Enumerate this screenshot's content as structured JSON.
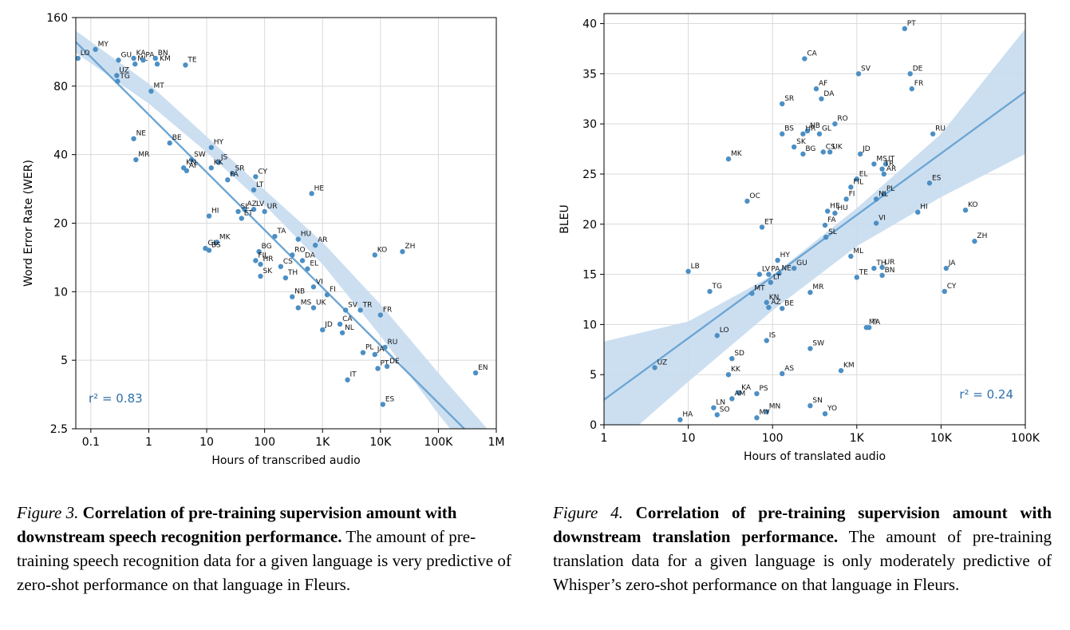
{
  "colors": {
    "point": "#4c8fc4",
    "line": "#6ea6d3",
    "band": "#c6dcef",
    "r2_text": "#2f6fa8",
    "grid": "#d9d9d9"
  },
  "chart_data": [
    {
      "type": "scatter",
      "xlabel": "Hours of transcribed audio",
      "ylabel": "Word Error Rate (WER)",
      "x_scale": "log",
      "y_scale": "log",
      "xlim": [
        0.055,
        1000000
      ],
      "ylim": [
        2.5,
        160
      ],
      "x_ticks": [
        {
          "v": 0.1,
          "label": "0.1"
        },
        {
          "v": 1,
          "label": "1"
        },
        {
          "v": 10,
          "label": "10"
        },
        {
          "v": 100,
          "label": "100"
        },
        {
          "v": 1000,
          "label": "1K"
        },
        {
          "v": 10000,
          "label": "10K"
        },
        {
          "v": 100000,
          "label": "100K"
        },
        {
          "v": 1000000,
          "label": "1M"
        }
      ],
      "y_ticks": [
        {
          "v": 2.5,
          "label": "2.5"
        },
        {
          "v": 5,
          "label": "5"
        },
        {
          "v": 10,
          "label": "10"
        },
        {
          "v": 20,
          "label": "20"
        },
        {
          "v": 40,
          "label": "40"
        },
        {
          "v": 80,
          "label": "80"
        },
        {
          "v": 160,
          "label": "160"
        }
      ],
      "annotation": "r² = 0.83",
      "grid": true,
      "fit": {
        "x1": 0.055,
        "y1": 125,
        "x2": 280000,
        "y2": 2.5
      },
      "band": {
        "upper": [
          [
            0.055,
            140
          ],
          [
            1,
            82
          ],
          [
            10,
            48
          ],
          [
            100,
            28
          ],
          [
            1000,
            16.5
          ],
          [
            10000,
            8.8
          ],
          [
            100000,
            4.4
          ],
          [
            700000,
            2.5
          ]
        ],
        "lower": [
          [
            0.055,
            112
          ],
          [
            1,
            67
          ],
          [
            10,
            41
          ],
          [
            100,
            24
          ],
          [
            1000,
            13.2
          ],
          [
            10000,
            6.4
          ],
          [
            100000,
            2.9
          ],
          [
            160000,
            2.5
          ]
        ]
      },
      "points": [
        {
          "label": "MY",
          "x": 0.12,
          "y": 116
        },
        {
          "label": "LO",
          "x": 0.06,
          "y": 106
        },
        {
          "label": "GU",
          "x": 0.3,
          "y": 104
        },
        {
          "label": "KA",
          "x": 0.55,
          "y": 106
        },
        {
          "label": "ML",
          "x": 0.58,
          "y": 100
        },
        {
          "label": "PA",
          "x": 0.8,
          "y": 104
        },
        {
          "label": "BN",
          "x": 1.3,
          "y": 106
        },
        {
          "label": "KM",
          "x": 1.4,
          "y": 100
        },
        {
          "label": "TE",
          "x": 4.3,
          "y": 99
        },
        {
          "label": "UZ",
          "x": 0.28,
          "y": 89
        },
        {
          "label": "TG",
          "x": 0.29,
          "y": 84
        },
        {
          "label": "MT",
          "x": 1.1,
          "y": 76
        },
        {
          "label": "NE",
          "x": 0.55,
          "y": 47
        },
        {
          "label": "MR",
          "x": 0.6,
          "y": 38
        },
        {
          "label": "BE",
          "x": 2.3,
          "y": 45
        },
        {
          "label": "HY",
          "x": 12,
          "y": 43
        },
        {
          "label": "SW",
          "x": 5.5,
          "y": 38
        },
        {
          "label": "KN",
          "x": 4,
          "y": 35
        },
        {
          "label": "AF",
          "x": 4.5,
          "y": 34
        },
        {
          "label": "IS",
          "x": 16,
          "y": 37
        },
        {
          "label": "KK",
          "x": 12,
          "y": 35
        },
        {
          "label": "SR",
          "x": 28,
          "y": 33
        },
        {
          "label": "FA",
          "x": 23,
          "y": 31
        },
        {
          "label": "CY",
          "x": 70,
          "y": 32
        },
        {
          "label": "LT",
          "x": 65,
          "y": 28
        },
        {
          "label": "HE",
          "x": 650,
          "y": 27
        },
        {
          "label": "HI",
          "x": 11,
          "y": 21.5
        },
        {
          "label": "AZ",
          "x": 45,
          "y": 23
        },
        {
          "label": "LV",
          "x": 65,
          "y": 23
        },
        {
          "label": "UR",
          "x": 100,
          "y": 22.5
        },
        {
          "label": "SL",
          "x": 35,
          "y": 22.5
        },
        {
          "label": "ET",
          "x": 40,
          "y": 21
        },
        {
          "label": "TA",
          "x": 150,
          "y": 17.5
        },
        {
          "label": "HU",
          "x": 380,
          "y": 17
        },
        {
          "label": "AR",
          "x": 750,
          "y": 16
        },
        {
          "label": "MK",
          "x": 15,
          "y": 16.5
        },
        {
          "label": "GL",
          "x": 9.5,
          "y": 15.5
        },
        {
          "label": "BS",
          "x": 11,
          "y": 15.2
        },
        {
          "label": "BG",
          "x": 80,
          "y": 15
        },
        {
          "label": "FIL",
          "x": 70,
          "y": 13.7
        },
        {
          "label": "RO",
          "x": 300,
          "y": 14.5
        },
        {
          "label": "DA",
          "x": 450,
          "y": 13.7
        },
        {
          "label": "HR",
          "x": 85,
          "y": 13.2
        },
        {
          "label": "CS",
          "x": 190,
          "y": 12.9
        },
        {
          "label": "EL",
          "x": 550,
          "y": 12.6
        },
        {
          "label": "SK",
          "x": 85,
          "y": 11.7
        },
        {
          "label": "TH",
          "x": 230,
          "y": 11.5
        },
        {
          "label": "KO",
          "x": 8000,
          "y": 14.5
        },
        {
          "label": "ZH",
          "x": 24000,
          "y": 15
        },
        {
          "label": "VI",
          "x": 700,
          "y": 10.5
        },
        {
          "label": "FI",
          "x": 1200,
          "y": 9.7
        },
        {
          "label": "NB",
          "x": 300,
          "y": 9.5
        },
        {
          "label": "MS",
          "x": 380,
          "y": 8.5
        },
        {
          "label": "UK",
          "x": 700,
          "y": 8.5
        },
        {
          "label": "SV",
          "x": 2500,
          "y": 8.3
        },
        {
          "label": "TR",
          "x": 4500,
          "y": 8.3
        },
        {
          "label": "FR",
          "x": 10000,
          "y": 7.9
        },
        {
          "label": "CA",
          "x": 2000,
          "y": 7.2
        },
        {
          "label": "JD",
          "x": 1000,
          "y": 6.8
        },
        {
          "label": "NL",
          "x": 2200,
          "y": 6.6
        },
        {
          "label": "RU",
          "x": 12000,
          "y": 5.7
        },
        {
          "label": "PL",
          "x": 5000,
          "y": 5.4
        },
        {
          "label": "JA",
          "x": 8000,
          "y": 5.3
        },
        {
          "label": "PT",
          "x": 9000,
          "y": 4.6
        },
        {
          "label": "DE",
          "x": 13000,
          "y": 4.7
        },
        {
          "label": "IT",
          "x": 2700,
          "y": 4.1
        },
        {
          "label": "ES",
          "x": 11000,
          "y": 3.2
        },
        {
          "label": "EN",
          "x": 440000,
          "y": 4.4
        }
      ]
    },
    {
      "type": "scatter",
      "xlabel": "Hours of translated audio",
      "ylabel": "BLEU",
      "x_scale": "log",
      "y_scale": "linear",
      "xlim": [
        1,
        100000
      ],
      "ylim": [
        0,
        41
      ],
      "x_ticks": [
        {
          "v": 1,
          "label": "1"
        },
        {
          "v": 10,
          "label": "10"
        },
        {
          "v": 100,
          "label": "100"
        },
        {
          "v": 1000,
          "label": "1K"
        },
        {
          "v": 10000,
          "label": "10K"
        },
        {
          "v": 100000,
          "label": "100K"
        }
      ],
      "y_ticks": [
        {
          "v": 0,
          "label": "0"
        },
        {
          "v": 5,
          "label": "5"
        },
        {
          "v": 10,
          "label": "10"
        },
        {
          "v": 15,
          "label": "15"
        },
        {
          "v": 20,
          "label": "20"
        },
        {
          "v": 25,
          "label": "25"
        },
        {
          "v": 30,
          "label": "30"
        },
        {
          "v": 35,
          "label": "35"
        },
        {
          "v": 40,
          "label": "40"
        }
      ],
      "annotation": "r² = 0.24",
      "grid": true,
      "fit": {
        "x1": 1,
        "y1": 2.5,
        "x2": 100000,
        "y2": 33.2
      },
      "band": {
        "upper": [
          [
            1,
            8.3
          ],
          [
            10,
            10.3
          ],
          [
            100,
            14.9
          ],
          [
            1000,
            21.6
          ],
          [
            10000,
            29
          ],
          [
            100000,
            39.5
          ]
        ],
        "lower": [
          [
            2.6,
            0
          ],
          [
            10,
            4.3
          ],
          [
            100,
            11.4
          ],
          [
            1000,
            17.8
          ],
          [
            10000,
            22.7
          ],
          [
            100000,
            27
          ]
        ]
      },
      "points": [
        {
          "label": "PT",
          "x": 3700,
          "y": 39.5
        },
        {
          "label": "CA",
          "x": 240,
          "y": 36.5
        },
        {
          "label": "SV",
          "x": 1050,
          "y": 35
        },
        {
          "label": "DE",
          "x": 4300,
          "y": 35
        },
        {
          "label": "AF",
          "x": 330,
          "y": 33.5
        },
        {
          "label": "FR",
          "x": 4500,
          "y": 33.5
        },
        {
          "label": "DA",
          "x": 380,
          "y": 32.5
        },
        {
          "label": "SR",
          "x": 130,
          "y": 32
        },
        {
          "label": "RO",
          "x": 550,
          "y": 30
        },
        {
          "label": "BS",
          "x": 130,
          "y": 29
        },
        {
          "label": "NB",
          "x": 260,
          "y": 29.3
        },
        {
          "label": "GL",
          "x": 360,
          "y": 29
        },
        {
          "label": "HR",
          "x": 230,
          "y": 29
        },
        {
          "label": "RU",
          "x": 8000,
          "y": 29
        },
        {
          "label": "SK",
          "x": 180,
          "y": 27.7
        },
        {
          "label": "BG",
          "x": 230,
          "y": 27
        },
        {
          "label": "CS",
          "x": 400,
          "y": 27.2
        },
        {
          "label": "UK",
          "x": 480,
          "y": 27.2
        },
        {
          "label": "JD",
          "x": 1100,
          "y": 27
        },
        {
          "label": "MS",
          "x": 1600,
          "y": 26
        },
        {
          "label": "IT",
          "x": 2200,
          "y": 26
        },
        {
          "label": "TR",
          "x": 2000,
          "y": 25.5
        },
        {
          "label": "AR",
          "x": 2100,
          "y": 25
        },
        {
          "label": "MK",
          "x": 30,
          "y": 26.5
        },
        {
          "label": "EL",
          "x": 1000,
          "y": 24.5
        },
        {
          "label": "ES",
          "x": 7300,
          "y": 24.1
        },
        {
          "label": "FIL",
          "x": 850,
          "y": 23.7
        },
        {
          "label": "PL",
          "x": 2100,
          "y": 23
        },
        {
          "label": "FI",
          "x": 750,
          "y": 22.5
        },
        {
          "label": "NL",
          "x": 1700,
          "y": 22.5
        },
        {
          "label": "OC",
          "x": 50,
          "y": 22.3
        },
        {
          "label": "HE",
          "x": 450,
          "y": 21.3
        },
        {
          "label": "HU",
          "x": 550,
          "y": 21.1
        },
        {
          "label": "HI",
          "x": 5300,
          "y": 21.2
        },
        {
          "label": "KO",
          "x": 19500,
          "y": 21.4
        },
        {
          "label": "VI",
          "x": 1700,
          "y": 20.1
        },
        {
          "label": "FA",
          "x": 420,
          "y": 19.9
        },
        {
          "label": "ET",
          "x": 75,
          "y": 19.7
        },
        {
          "label": "SL",
          "x": 430,
          "y": 18.7
        },
        {
          "label": "ZH",
          "x": 25000,
          "y": 18.3
        },
        {
          "label": "ML",
          "x": 850,
          "y": 16.8
        },
        {
          "label": "HY",
          "x": 115,
          "y": 16.4
        },
        {
          "label": "GU",
          "x": 180,
          "y": 15.6
        },
        {
          "label": "TH",
          "x": 1600,
          "y": 15.6
        },
        {
          "label": "UR",
          "x": 2000,
          "y": 15.7
        },
        {
          "label": "JA",
          "x": 11500,
          "y": 15.6
        },
        {
          "label": "LB",
          "x": 10,
          "y": 15.3
        },
        {
          "label": "LV",
          "x": 70,
          "y": 15
        },
        {
          "label": "PA",
          "x": 90,
          "y": 15
        },
        {
          "label": "NE",
          "x": 120,
          "y": 15.1
        },
        {
          "label": "TE",
          "x": 1000,
          "y": 14.7
        },
        {
          "label": "BN",
          "x": 2000,
          "y": 14.9
        },
        {
          "label": "LT",
          "x": 95,
          "y": 14.2
        },
        {
          "label": "MT",
          "x": 57,
          "y": 13.1
        },
        {
          "label": "TG",
          "x": 18,
          "y": 13.3
        },
        {
          "label": "MR",
          "x": 280,
          "y": 13.2
        },
        {
          "label": "CY",
          "x": 11000,
          "y": 13.3
        },
        {
          "label": "KN",
          "x": 85,
          "y": 12.2
        },
        {
          "label": "AZ",
          "x": 90,
          "y": 11.7
        },
        {
          "label": "BE",
          "x": 130,
          "y": 11.6
        },
        {
          "label": "MI",
          "x": 1300,
          "y": 9.7
        },
        {
          "label": "TA",
          "x": 1400,
          "y": 9.7
        },
        {
          "label": "LO",
          "x": 22,
          "y": 8.9
        },
        {
          "label": "IS",
          "x": 85,
          "y": 8.4
        },
        {
          "label": "SW",
          "x": 280,
          "y": 7.6
        },
        {
          "label": "SD",
          "x": 33,
          "y": 6.6
        },
        {
          "label": "UZ",
          "x": 4,
          "y": 5.7
        },
        {
          "label": "KK",
          "x": 30,
          "y": 5
        },
        {
          "label": "AS",
          "x": 130,
          "y": 5.1
        },
        {
          "label": "KM",
          "x": 650,
          "y": 5.4
        },
        {
          "label": "KA",
          "x": 40,
          "y": 3.2
        },
        {
          "label": "PS",
          "x": 65,
          "y": 3.1
        },
        {
          "label": "AM",
          "x": 33,
          "y": 2.6
        },
        {
          "label": "LN",
          "x": 20,
          "y": 1.7
        },
        {
          "label": "SO",
          "x": 22,
          "y": 1
        },
        {
          "label": "SN",
          "x": 280,
          "y": 1.9
        },
        {
          "label": "YO",
          "x": 420,
          "y": 1.1
        },
        {
          "label": "MN",
          "x": 85,
          "y": 1.3
        },
        {
          "label": "MY",
          "x": 65,
          "y": 0.7
        },
        {
          "label": "HA",
          "x": 8,
          "y": 0.5
        }
      ]
    }
  ],
  "captions": [
    {
      "label": "Figure 3.",
      "title": "Correlation of pre-training supervision amount with downstream speech recognition performance.",
      "body": " The amount of pre-training speech recognition data for a given language is very predictive of zero-shot performance on that language in Fleurs."
    },
    {
      "label": "Figure 4.",
      "title": "Correlation of pre-training supervision amount with downstream translation performance.",
      "body": " The amount of pre-training translation data for a given language is only moderately predictive of Whisper’s zero-shot performance on that language in Fleurs."
    }
  ]
}
